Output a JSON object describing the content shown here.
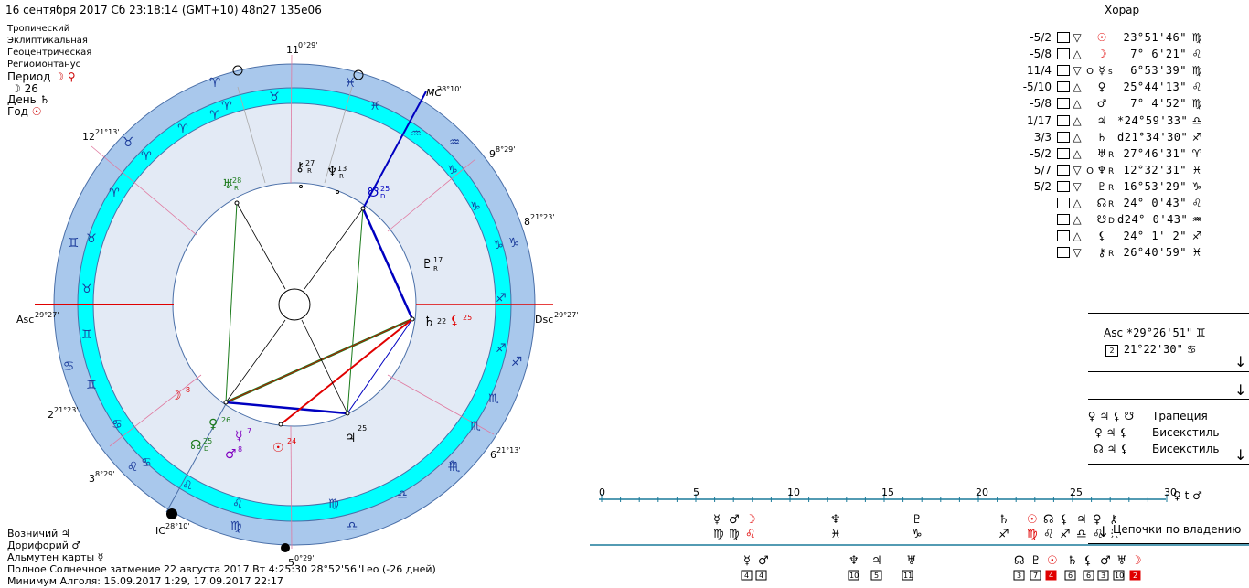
{
  "header": {
    "line1": "16 сентября 2017  Сб  23:18:14 (GMT+10) 48n27  135e06",
    "zodiac": "Тропический",
    "coords": "Эклиптикальная",
    "center": "Геоцентрическая",
    "houses": "Региомонтанус",
    "period_label": "Период",
    "period_symbols": "☽ ♀",
    "moon_day": "☽  26",
    "day_label": "День",
    "day_symbol": "♄",
    "year_label": "Год",
    "year_symbol": "☉"
  },
  "footer": {
    "vozn": "Возничий",
    "vozn_sym": "♃",
    "dorif": "Дорифорий",
    "dorif_sym": "♂",
    "almuten": "Альмутен карты",
    "almuten_sym": "☿",
    "eclipse": "Полное Солнечное затмение 22 августа 2017 Вт  4:25:30 28°52'56\"Leo (-26 дней)",
    "algol": "Минимум Алголя: 15.09.2017  1:29,  17.09.2017 22:17"
  },
  "horar_title": "Хорар",
  "planets": [
    {
      "ratio": "-5/2",
      "tri": "▽",
      "o": "",
      "sym": "☉",
      "rx": "",
      "pos": "23°51'46\"",
      "sign": "♍"
    },
    {
      "ratio": "-5/8",
      "tri": "△",
      "o": "",
      "sym": "☽",
      "rx": "",
      "pos": "7° 6'21\"",
      "sign": "♌"
    },
    {
      "ratio": "11/4",
      "tri": "▽",
      "o": "O",
      "sym": "☿",
      "rx": "s",
      "pos": "6°53'39\"",
      "sign": "♍"
    },
    {
      "ratio": "-5/10",
      "tri": "△",
      "o": "",
      "sym": "♀",
      "rx": "",
      "pos": "25°44'13\"",
      "sign": "♌"
    },
    {
      "ratio": "-5/8",
      "tri": "△",
      "o": "",
      "sym": "♂",
      "rx": "",
      "pos": "7° 4'52\"",
      "sign": "♍"
    },
    {
      "ratio": "1/17",
      "tri": "△",
      "o": "",
      "sym": "♃",
      "rx": "",
      "pos": "*24°59'33\"",
      "sign": "♎"
    },
    {
      "ratio": "3/3",
      "tri": "△",
      "o": "",
      "sym": "♄",
      "rx": "",
      "pos": "d21°34'30\"",
      "sign": "♐"
    },
    {
      "ratio": "-5/2",
      "tri": "△",
      "o": "",
      "sym": "♅",
      "rx": "R",
      "pos": "27°46'31\"",
      "sign": "♈"
    },
    {
      "ratio": "5/7",
      "tri": "▽",
      "o": "O",
      "sym": "♆",
      "rx": "R",
      "pos": "12°32'31\"",
      "sign": "♓"
    },
    {
      "ratio": "-5/2",
      "tri": "▽",
      "o": "",
      "sym": "♇",
      "rx": "R",
      "pos": "16°53'29\"",
      "sign": "♑"
    },
    {
      "ratio": "",
      "tri": "△",
      "o": "",
      "sym": "☊",
      "rx": "R",
      "pos": "24° 0'43\"",
      "sign": "♌"
    },
    {
      "ratio": "",
      "tri": "△",
      "o": "",
      "sym": "☋",
      "rx": "D",
      "pos": "d24° 0'43\"",
      "sign": "♒"
    },
    {
      "ratio": "",
      "tri": "△",
      "o": "",
      "sym": "⚸",
      "rx": "",
      "pos": "24° 1' 2\"",
      "sign": "♐"
    },
    {
      "ratio": "",
      "tri": "▽",
      "o": "",
      "sym": "⚷",
      "rx": "R",
      "pos": "26°40'59\"",
      "sign": "♓"
    }
  ],
  "angles": {
    "asc_label": "Asc",
    "asc_pos": "*29°26'51\"",
    "asc_sign": "♊",
    "h2_box": "2",
    "h2_pos": "21°22'30\"",
    "h2_sign": "♋"
  },
  "patterns": [
    {
      "syms": "♀ ♃ ⚸ ☋",
      "name": "Трапеция"
    },
    {
      "syms": "♀ ♃ ⚸",
      "name": "Бисекстиль"
    },
    {
      "syms": "☊ ♃ ⚸",
      "name": "Бисекстиль"
    }
  ],
  "chain_label": "Цепочки по владению",
  "scale": {
    "ticks": [
      "0",
      "5",
      "10",
      "15",
      "20",
      "25",
      "30"
    ],
    "right_symbols": "♀ t ♂"
  },
  "wheel": {
    "labels": {
      "asc": "Asc",
      "asc_deg": "29°27'",
      "dsc": "Dsc",
      "dsc_deg": "29°27'",
      "mc": "MC",
      "mc_deg": "28°10'",
      "ic": "IC",
      "ic_deg": "28°10'",
      "h2": "2",
      "h2_deg": "21°23'",
      "h3": "3",
      "h3_deg": "8°29'",
      "h5": "5",
      "h5_deg": "0°29'",
      "h6": "6",
      "h6_deg": "21°13'",
      "h8": "8",
      "h8_deg": "21°23'",
      "h9": "9",
      "h9_deg": "8°29'",
      "h11": "11",
      "h11_deg": "0°29'",
      "h12": "12",
      "h12_deg": "21°13'"
    },
    "colors": {
      "outer": "#a9c8ec",
      "cyan": "#00ffff",
      "inner": "#e3eaf5",
      "red": "#e00000",
      "blue": "#0000c0",
      "green": "#1a7a1a"
    }
  }
}
